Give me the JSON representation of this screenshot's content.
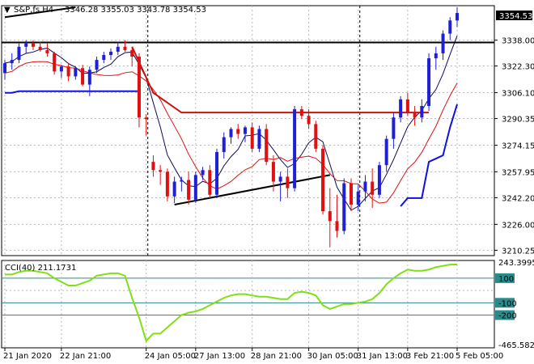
{
  "header": {
    "symbol": "S&P,fs,H4",
    "ohlc": "3346.28 3355.03 3343.78 3354.53"
  },
  "colors": {
    "bull": "#1f1fd6",
    "bear": "#e01010",
    "ma_fast": "#0a0a5c",
    "ma_slow": "#e01010",
    "ma_blue": "#1010e0",
    "cci": "#7fe014",
    "levels": "#2b8a8a",
    "resistance": "#000000",
    "red_line": "#cc1111",
    "grid": "#b8b8b8"
  },
  "chart_data": [
    {
      "type": "candlestick",
      "title": "S&P,fs,H4",
      "x_tick_labels": [
        "21 Jan 2020",
        "22 Jan 21:00",
        "24 Jan 05:00",
        "27 Jan 13:00",
        "28 Jan 21:00",
        "30 Jan 05:00",
        "31 Jan 13:00",
        "3 Feb 21:00",
        "5 Feb 05:00"
      ],
      "y_tick_labels": [
        "3338.00",
        "3322.30",
        "3306.10",
        "3290.35",
        "3274.15",
        "3257.95",
        "3242.20",
        "3226.00",
        "3210.25"
      ],
      "ylim": [
        3207,
        3359
      ],
      "current_price_label": "3354.53",
      "candles": [
        [
          3318,
          3326,
          3314,
          3324
        ],
        [
          3324,
          3330,
          3320,
          3326
        ],
        [
          3326,
          3336,
          3324,
          3334
        ],
        [
          3334,
          3338,
          3330,
          3336
        ],
        [
          3336,
          3338,
          3332,
          3334
        ],
        [
          3334,
          3337,
          3331,
          3332
        ],
        [
          3332,
          3336,
          3328,
          3330
        ],
        [
          3330,
          3331,
          3317,
          3319
        ],
        [
          3319,
          3323,
          3315,
          3322
        ],
        [
          3322,
          3324,
          3313,
          3316
        ],
        [
          3316,
          3322,
          3314,
          3321
        ],
        [
          3321,
          3323,
          3310,
          3311
        ],
        [
          3311,
          3322,
          3304,
          3320
        ],
        [
          3320,
          3328,
          3318,
          3326
        ],
        [
          3326,
          3331,
          3324,
          3329
        ],
        [
          3329,
          3333,
          3326,
          3331
        ],
        [
          3331,
          3337,
          3329,
          3334
        ],
        [
          3334,
          3338,
          3331,
          3332
        ],
        [
          3332,
          3334,
          3322,
          3328
        ],
        [
          3328,
          3330,
          3285,
          3291
        ],
        [
          3291,
          3293,
          3280,
          3290
        ],
        [
          3264,
          3268,
          3255,
          3259
        ],
        [
          3259,
          3262,
          3250,
          3258
        ],
        [
          3258,
          3260,
          3240,
          3243
        ],
        [
          3243,
          3255,
          3239,
          3252
        ],
        [
          3252,
          3255,
          3246,
          3253
        ],
        [
          3253,
          3258,
          3238,
          3241
        ],
        [
          3241,
          3258,
          3239,
          3256
        ],
        [
          3256,
          3261,
          3253,
          3259
        ],
        [
          3259,
          3262,
          3242,
          3244
        ],
        [
          3244,
          3272,
          3242,
          3270
        ],
        [
          3270,
          3282,
          3266,
          3279
        ],
        [
          3279,
          3285,
          3275,
          3284
        ],
        [
          3284,
          3287,
          3278,
          3281
        ],
        [
          3281,
          3286,
          3276,
          3285
        ],
        [
          3285,
          3288,
          3270,
          3272
        ],
        [
          3272,
          3286,
          3270,
          3284
        ],
        [
          3284,
          3287,
          3262,
          3264
        ],
        [
          3264,
          3268,
          3246,
          3252
        ],
        [
          3252,
          3258,
          3240,
          3255
        ],
        [
          3255,
          3260,
          3242,
          3248
        ],
        [
          3248,
          3298,
          3246,
          3296
        ],
        [
          3296,
          3298,
          3290,
          3292
        ],
        [
          3292,
          3296,
          3284,
          3287
        ],
        [
          3287,
          3289,
          3270,
          3272
        ],
        [
          3272,
          3274,
          3232,
          3234
        ],
        [
          3234,
          3248,
          3212,
          3228
        ],
        [
          3228,
          3244,
          3218,
          3222
        ],
        [
          3222,
          3254,
          3220,
          3251
        ],
        [
          3251,
          3254,
          3234,
          3238
        ],
        [
          3238,
          3250,
          3234,
          3246
        ],
        [
          3246,
          3256,
          3240,
          3252
        ],
        [
          3252,
          3260,
          3236,
          3244
        ],
        [
          3244,
          3264,
          3242,
          3262
        ],
        [
          3262,
          3280,
          3258,
          3278
        ],
        [
          3278,
          3294,
          3272,
          3291
        ],
        [
          3291,
          3304,
          3288,
          3302
        ],
        [
          3302,
          3306,
          3292,
          3294
        ],
        [
          3294,
          3298,
          3286,
          3291
        ],
        [
          3291,
          3302,
          3288,
          3298
        ],
        [
          3298,
          3330,
          3295,
          3327
        ],
        [
          3327,
          3334,
          3320,
          3330
        ],
        [
          3330,
          3344,
          3326,
          3342
        ],
        [
          3342,
          3352,
          3338,
          3350
        ],
        [
          3350,
          3358,
          3346,
          3354.53
        ]
      ]
    },
    {
      "type": "line",
      "title": "CCI(40) 211.1731",
      "y_tick_labels": [
        "100",
        "-100",
        "-200"
      ],
      "y_max_label": "243.3995",
      "y_min_label": "-465.5823",
      "ylim": [
        -466,
        244
      ],
      "levels": [
        100,
        -100,
        -200
      ]
    }
  ]
}
